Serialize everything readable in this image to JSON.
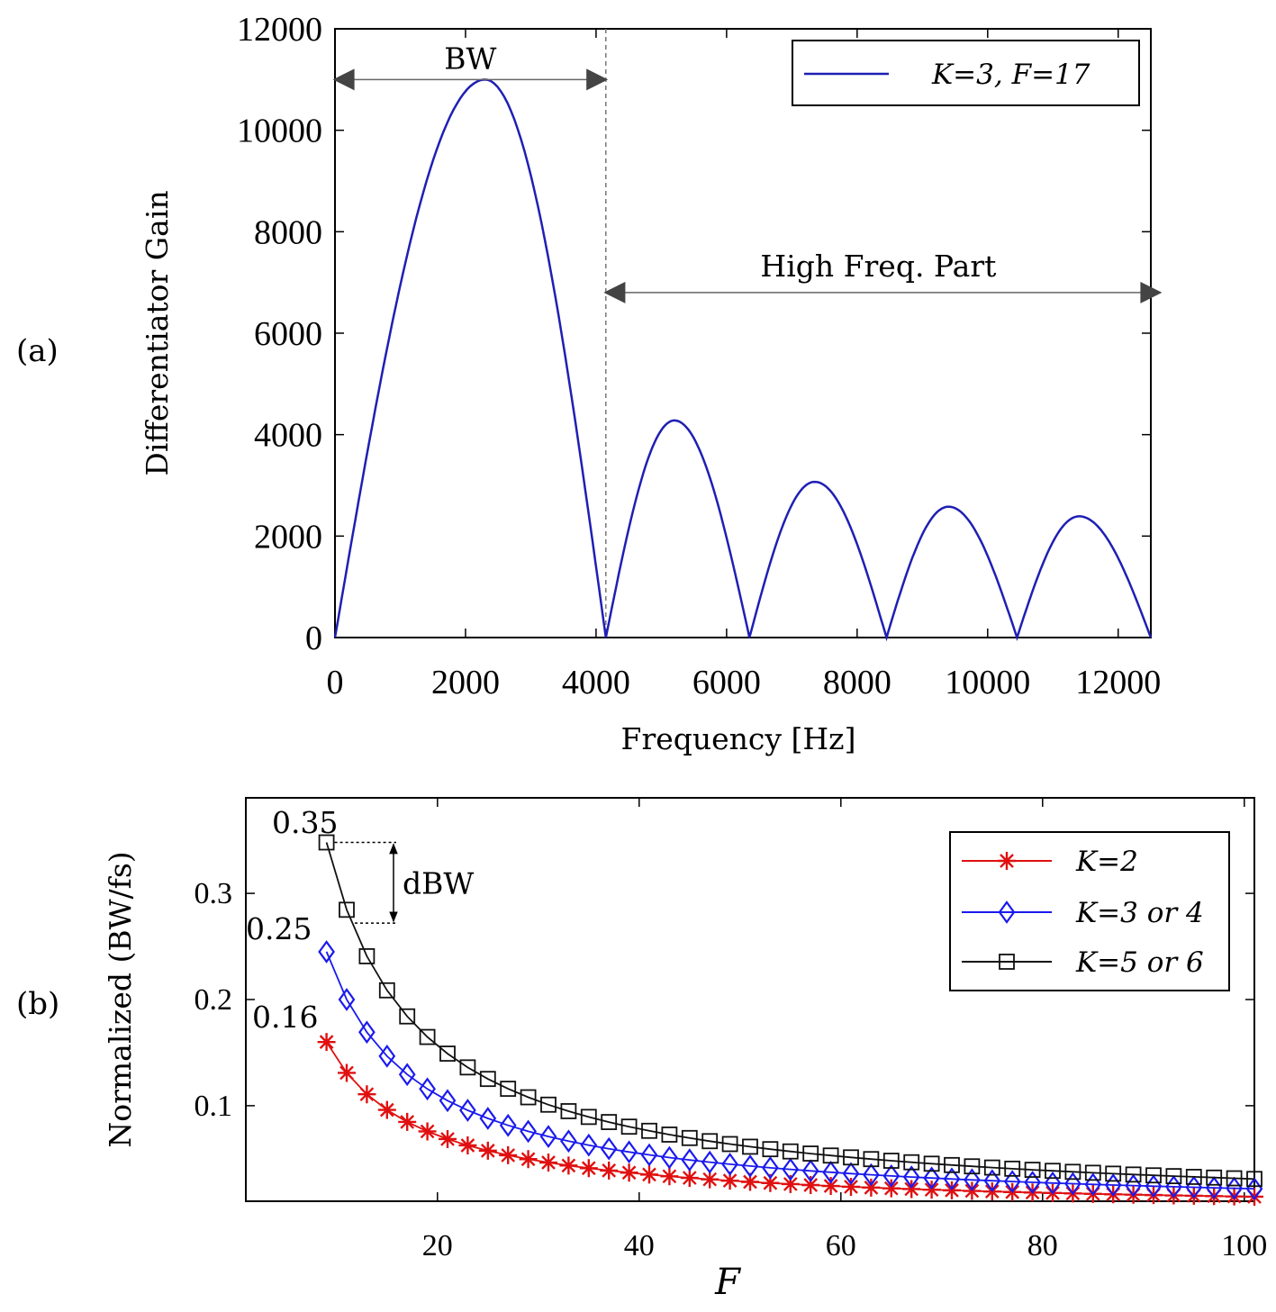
{
  "panel_labels": {
    "a": "(a)",
    "b": "(b)"
  },
  "chart_data": [
    {
      "id": "a",
      "type": "line",
      "title": "",
      "xlabel": "Frequency [Hz]",
      "ylabel": "Differentiator Gain",
      "xlim": [
        0,
        12500
      ],
      "ylim": [
        0,
        12000
      ],
      "xticks": [
        0,
        2000,
        4000,
        6000,
        8000,
        10000,
        12000
      ],
      "yticks": [
        0,
        2000,
        4000,
        6000,
        8000,
        10000,
        12000
      ],
      "grid": false,
      "legend_position": "top-right",
      "series": [
        {
          "name": "K=3, F=17",
          "color": "#1f1fb4",
          "peaks": [
            {
              "start": 0,
              "peak_x": 2300,
              "peak_y": 11000,
              "end": 4150
            },
            {
              "start": 4150,
              "peak_x": 5200,
              "peak_y": 4280,
              "end": 6350
            },
            {
              "start": 6350,
              "peak_x": 7350,
              "peak_y": 3070,
              "end": 8450
            },
            {
              "start": 8450,
              "peak_x": 9400,
              "peak_y": 2580,
              "end": 10450
            },
            {
              "start": 10450,
              "peak_x": 11400,
              "peak_y": 2390,
              "end": 12500
            }
          ]
        }
      ],
      "annotations": {
        "bw_label": "BW",
        "bw_range": [
          0,
          4150
        ],
        "bw_y": 11000,
        "high_label": "High Freq. Part",
        "high_range": [
          4150,
          12500
        ],
        "high_y": 6800,
        "cutoff_x": 4150
      }
    },
    {
      "id": "b",
      "type": "line",
      "title": "",
      "xlabel": "F",
      "ylabel": "Normalized (BW/fs)",
      "xlim": [
        1,
        101
      ],
      "ylim": [
        0.01,
        0.39
      ],
      "xticks": [
        20,
        40,
        60,
        80,
        100
      ],
      "yticks": [
        0.1,
        0.2,
        0.3
      ],
      "ytick_labels": [
        "0.1",
        "0.2",
        "0.3"
      ],
      "grid": false,
      "legend_position": "top-right",
      "x_start": 9,
      "x_end": 101,
      "x_step": 2,
      "series": [
        {
          "name": "K=2",
          "color": "#e01010",
          "marker": "asterisk",
          "coefficient": 1.44,
          "first_value": 0.16
        },
        {
          "name": "K=3 or 4",
          "color": "#1a1aee",
          "marker": "diamond",
          "coefficient": 2.2,
          "first_value": 0.245
        },
        {
          "name": "K=5 or 6",
          "color": "#111111",
          "marker": "square",
          "coefficient": 3.13,
          "first_value": 0.348
        }
      ],
      "annotations": {
        "value_labels": [
          "0.35",
          "0.25",
          "0.16"
        ],
        "dbw_label": "dBW",
        "dbw_from": 0.348,
        "dbw_to": 0.272
      }
    }
  ]
}
